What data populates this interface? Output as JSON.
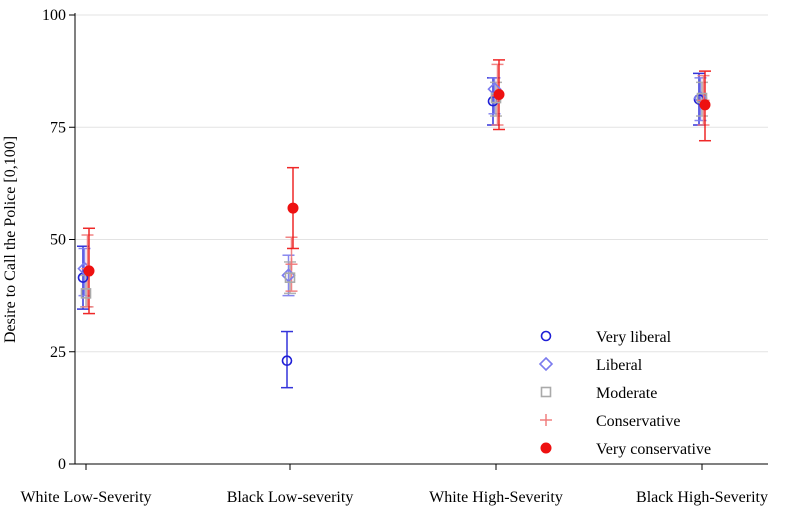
{
  "chart_data": {
    "type": "scatter",
    "title": "",
    "xlabel": "",
    "ylabel": "Desire to Call the Police [0,100]",
    "ylim": [
      0,
      100
    ],
    "yticks": [
      0,
      25,
      50,
      75,
      100
    ],
    "grid": true,
    "legend_position": "bottom-right",
    "categories": [
      "White Low-Severity",
      "Black Low-severity",
      "White High-Severity",
      "Black High-Severity"
    ],
    "series": [
      {
        "name": "Very liberal",
        "marker": "circle-open",
        "color": "#1f1fd6",
        "values": [
          41.5,
          23.0,
          80.8,
          81.2
        ],
        "ci_low": [
          34.5,
          17.0,
          75.5,
          75.5
        ],
        "ci_high": [
          48.5,
          29.5,
          86.0,
          87.0
        ]
      },
      {
        "name": "Liberal",
        "marker": "diamond-open",
        "color": "#7b7bee",
        "values": [
          43.5,
          42.0,
          83.5,
          81.5
        ],
        "ci_low": [
          37.5,
          37.5,
          78.0,
          76.5
        ],
        "ci_high": [
          48.0,
          46.5,
          86.0,
          86.0
        ]
      },
      {
        "name": "Moderate",
        "marker": "square-open",
        "color": "#aaaaaa",
        "values": [
          38.0,
          41.5,
          81.5,
          81.5
        ],
        "ci_low": [
          35.0,
          38.0,
          77.5,
          77.5
        ],
        "ci_high": [
          42.0,
          45.0,
          85.0,
          85.0
        ]
      },
      {
        "name": "Conservative",
        "marker": "plus",
        "color": "#f07878",
        "values": [
          43.5,
          44.5,
          82.0,
          81.0
        ],
        "ci_low": [
          35.0,
          38.5,
          75.5,
          75.5
        ],
        "ci_high": [
          51.0,
          50.5,
          89.0,
          86.5
        ]
      },
      {
        "name": "Very conservative",
        "marker": "circle-filled",
        "color": "#ee1111",
        "values": [
          43.0,
          57.0,
          82.3,
          80.0
        ],
        "ci_low": [
          33.5,
          48.0,
          74.5,
          72.0
        ],
        "ci_high": [
          52.5,
          66.0,
          90.0,
          87.5
        ]
      }
    ]
  }
}
